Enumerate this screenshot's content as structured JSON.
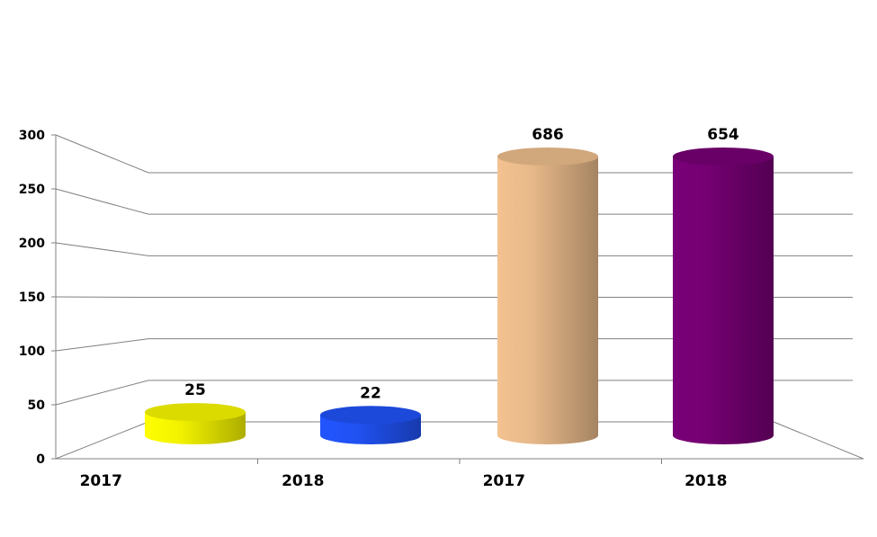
{
  "chart_data": {
    "type": "bar",
    "style": "3d-cylinder",
    "categories": [
      "2017",
      "2018",
      "2017",
      "2018"
    ],
    "values": [
      25,
      22,
      686,
      654
    ],
    "data_labels": [
      "25",
      "22",
      "686",
      "654"
    ],
    "colors": [
      "#ffff00",
      "#2255ff",
      "#f3c290",
      "#7a0078"
    ],
    "title": "",
    "xlabel": "",
    "ylabel": "",
    "ylim": [
      0,
      300
    ],
    "yticks": [
      0,
      50,
      100,
      150,
      200,
      250,
      300
    ],
    "grid": true,
    "legend": "none"
  }
}
